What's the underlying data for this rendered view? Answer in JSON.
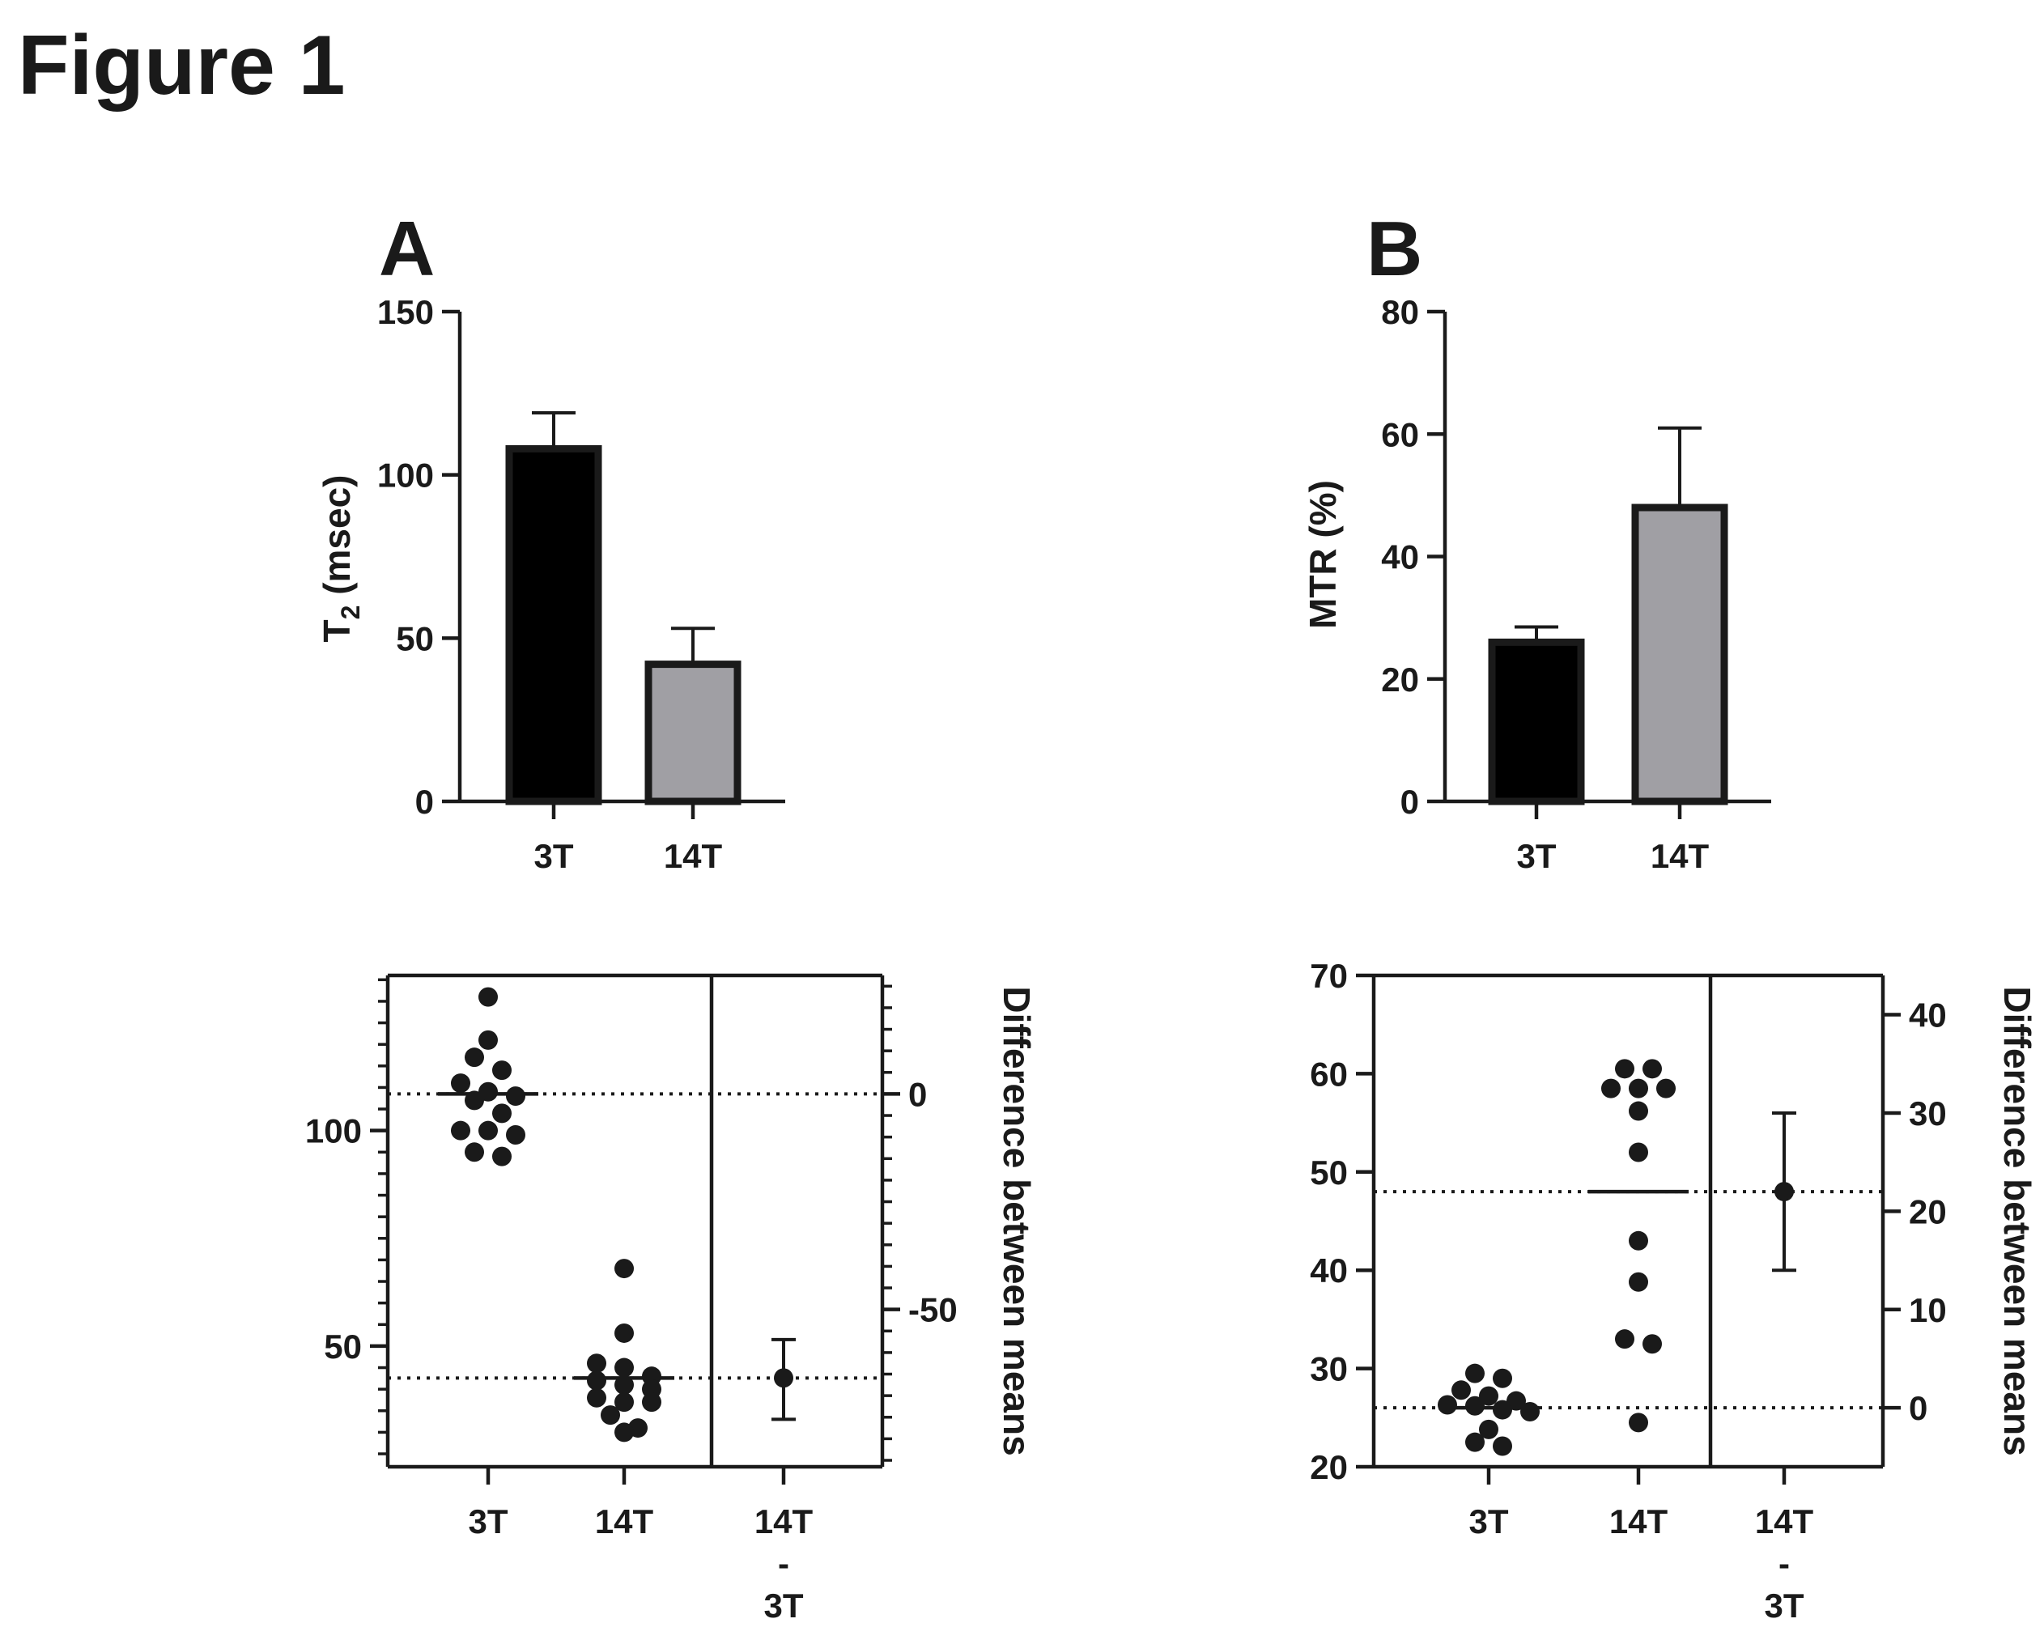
{
  "figure_title": "Figure 1",
  "colors": {
    "ink": "#1a1a1a",
    "bar_3T": "#000000",
    "bar_14T": "#a09fa4"
  },
  "chart_data": [
    {
      "id": "A_bar",
      "panel_label": "A",
      "type": "bar",
      "categories": [
        "3T",
        "14T"
      ],
      "values": [
        108,
        42
      ],
      "errors": [
        11,
        11
      ],
      "ylabel_main": "T",
      "ylabel_sub": "2",
      "ylabel_rest": " (msec)",
      "ylim": [
        0,
        150
      ],
      "yticks": [
        0,
        50,
        100,
        150
      ],
      "ytick_labels": [
        "0",
        "50",
        "100",
        "150"
      ]
    },
    {
      "id": "B_bar",
      "panel_label": "B",
      "type": "bar",
      "categories": [
        "3T",
        "14T"
      ],
      "values": [
        26,
        48
      ],
      "errors": [
        2.5,
        13
      ],
      "ylabel": "MTR (%)",
      "ylim": [
        0,
        80
      ],
      "yticks": [
        0,
        20,
        40,
        60,
        80
      ],
      "ytick_labels": [
        "0",
        "20",
        "40",
        "60",
        "80"
      ]
    },
    {
      "id": "A_estimation",
      "type": "scatter",
      "categories": [
        "3T",
        "14T"
      ],
      "diff_label_lines": [
        "14T",
        "-",
        "3T"
      ],
      "means": [
        108.5,
        42.6
      ],
      "points": [
        [
          131,
          121,
          117,
          114,
          111,
          109,
          108,
          107,
          104,
          100,
          100,
          99,
          95,
          94
        ],
        [
          68,
          53,
          46,
          45,
          43,
          42,
          41,
          40,
          38,
          37,
          37,
          34,
          31,
          30
        ]
      ],
      "left_ylim": [
        22,
        136
      ],
      "left_yticks": [
        50,
        100
      ],
      "left_ytick_labels": [
        "50",
        "100"
      ],
      "right_ylim": [
        -86.5,
        27.5
      ],
      "right_yticks": [
        0,
        -50
      ],
      "right_ytick_labels": [
        "0",
        "-50"
      ],
      "diff_mean": -65.9,
      "diff_ci": [
        -75.5,
        -57
      ],
      "right_ylabel": "Difference between means"
    },
    {
      "id": "B_estimation",
      "type": "scatter",
      "categories": [
        "3T",
        "14T"
      ],
      "diff_label_lines": [
        "14T",
        "-",
        "3T"
      ],
      "means": [
        26,
        48
      ],
      "points": [
        [
          29.5,
          29,
          27.8,
          27.2,
          26.7,
          26.3,
          26.2,
          25.8,
          25.6,
          23.8,
          22.5,
          22.1
        ],
        [
          60.5,
          60.5,
          58.5,
          58.5,
          58.5,
          56.2,
          52,
          43,
          38.8,
          33,
          32.5,
          24.5
        ]
      ],
      "left_ylim": [
        20,
        70
      ],
      "left_yticks": [
        20,
        30,
        40,
        50,
        60,
        70
      ],
      "left_ytick_labels": [
        "20",
        "30",
        "40",
        "50",
        "60",
        "70"
      ],
      "right_ylim": [
        -6,
        44
      ],
      "right_yticks": [
        0,
        10,
        20,
        30,
        40
      ],
      "right_ytick_labels": [
        "0",
        "10",
        "20",
        "30",
        "40"
      ],
      "diff_mean": 22,
      "diff_ci": [
        14,
        30
      ],
      "right_ylabel": "Difference between means"
    }
  ]
}
